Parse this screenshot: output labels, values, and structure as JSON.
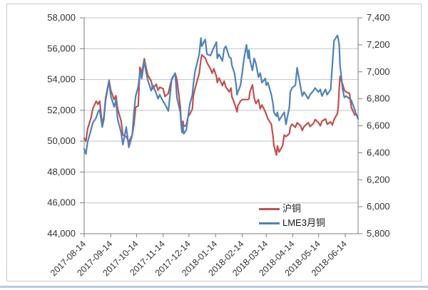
{
  "chart_data": {
    "type": "line",
    "title": "",
    "grid": "horizontal",
    "legend_position": "inside-bottom-right",
    "left_axis": {
      "min": 44000,
      "max": 58000,
      "step": 2000,
      "tick_labels": [
        "44,000",
        "46,000",
        "48,000",
        "50,000",
        "52,000",
        "54,000",
        "56,000",
        "58,000"
      ]
    },
    "right_axis": {
      "min": 5800,
      "max": 7400,
      "step": 200,
      "tick_labels": [
        "5,800",
        "6,000",
        "6,200",
        "6,400",
        "6,600",
        "6,800",
        "7,000",
        "7,200",
        "7,400"
      ]
    },
    "x_ticks": [
      "2017-08-14",
      "2017-09-14",
      "2017-10-14",
      "2017-11-14",
      "2017-12-14",
      "2018-01-14",
      "2018-02-14",
      "2018-03-14",
      "2018-04-14",
      "2018-05-14",
      "2018-06-14"
    ],
    "x": [
      "2017-08-14",
      "2017-08-16",
      "2017-08-18",
      "2017-08-22",
      "2017-08-24",
      "2017-08-28",
      "2017-08-30",
      "2017-09-01",
      "2017-09-04",
      "2017-09-06",
      "2017-09-08",
      "2017-09-12",
      "2017-09-14",
      "2017-09-18",
      "2017-09-20",
      "2017-09-22",
      "2017-09-26",
      "2017-09-28",
      "2017-10-02",
      "2017-10-05",
      "2017-10-09",
      "2017-10-11",
      "2017-10-13",
      "2017-10-16",
      "2017-10-18",
      "2017-10-20",
      "2017-10-23",
      "2017-10-25",
      "2017-10-27",
      "2017-10-31",
      "2017-11-02",
      "2017-11-06",
      "2017-11-08",
      "2017-11-10",
      "2017-11-14",
      "2017-11-16",
      "2017-11-20",
      "2017-11-22",
      "2017-11-24",
      "2017-11-28",
      "2017-11-30",
      "2017-12-04",
      "2017-12-05",
      "2017-12-06",
      "2017-12-07",
      "2017-12-08",
      "2017-12-11",
      "2017-12-13",
      "2017-12-15",
      "2017-12-18",
      "2017-12-19",
      "2017-12-21",
      "2017-12-26",
      "2017-12-28",
      "2017-12-29",
      "2018-01-02",
      "2018-01-04",
      "2018-01-08",
      "2018-01-10",
      "2018-01-12",
      "2018-01-15",
      "2018-01-16",
      "2018-01-18",
      "2018-01-22",
      "2018-01-24",
      "2018-01-26",
      "2018-01-30",
      "2018-02-01",
      "2018-02-02",
      "2018-02-05",
      "2018-02-07",
      "2018-02-08",
      "2018-02-09",
      "2018-02-12",
      "2018-02-14",
      "2018-02-16",
      "2018-02-19",
      "2018-02-21",
      "2018-02-22",
      "2018-02-23",
      "2018-02-26",
      "2018-02-28",
      "2018-03-02",
      "2018-03-05",
      "2018-03-07",
      "2018-03-09",
      "2018-03-13",
      "2018-03-14",
      "2018-03-16",
      "2018-03-20",
      "2018-03-22",
      "2018-03-23",
      "2018-03-26",
      "2018-03-27",
      "2018-03-29",
      "2018-04-02",
      "2018-04-04",
      "2018-04-06",
      "2018-04-10",
      "2018-04-11",
      "2018-04-13",
      "2018-04-17",
      "2018-04-19",
      "2018-04-23",
      "2018-04-25",
      "2018-04-27",
      "2018-05-02",
      "2018-05-04",
      "2018-05-08",
      "2018-05-10",
      "2018-05-14",
      "2018-05-16",
      "2018-05-18",
      "2018-05-22",
      "2018-05-24",
      "2018-05-28",
      "2018-05-30",
      "2018-06-01",
      "2018-06-05",
      "2018-06-06",
      "2018-06-07",
      "2018-06-08",
      "2018-06-11",
      "2018-06-13",
      "2018-06-15",
      "2018-06-19",
      "2018-06-21",
      "2018-06-25",
      "2018-06-27",
      "2018-06-29"
    ],
    "series": [
      {
        "name": "沪铜",
        "axis": "left",
        "color": "#C0504D",
        "values": [
          50200,
          50000,
          50800,
          51500,
          52100,
          52600,
          52400,
          52600,
          51050,
          51600,
          52800,
          53950,
          53300,
          52700,
          52950,
          52100,
          51300,
          50400,
          50300,
          49950,
          50400,
          51100,
          52200,
          52300,
          54800,
          54400,
          55350,
          54800,
          54300,
          53900,
          53400,
          53700,
          53300,
          53500,
          53400,
          52900,
          53100,
          53600,
          54000,
          54400,
          54000,
          52200,
          51200,
          50900,
          51300,
          50950,
          51050,
          51600,
          51750,
          52100,
          52900,
          53400,
          54400,
          55300,
          55600,
          55400,
          55100,
          54700,
          54400,
          54700,
          54200,
          53800,
          54100,
          53600,
          53900,
          53500,
          53200,
          53450,
          52900,
          52450,
          52100,
          51900,
          52300,
          52600,
          52700,
          52700,
          52700,
          52700,
          52750,
          53200,
          53650,
          52800,
          52450,
          52700,
          52100,
          52350,
          51900,
          51750,
          51450,
          51100,
          50300,
          49700,
          49100,
          49700,
          49300,
          49700,
          50400,
          50300,
          50500,
          50900,
          51100,
          50900,
          51200,
          51000,
          50700,
          50950,
          51200,
          50950,
          51150,
          51400,
          51200,
          51000,
          51300,
          51450,
          51100,
          51250,
          51050,
          51400,
          51800,
          52300,
          53400,
          54200,
          53700,
          53300,
          53200,
          53100,
          52200,
          51700,
          51750,
          51450
        ]
      },
      {
        "name": "LME3月铜",
        "axis": "right",
        "color": "#4F81BD",
        "values": [
          6430,
          6390,
          6480,
          6570,
          6620,
          6660,
          6700,
          6720,
          6590,
          6650,
          6790,
          6930,
          6820,
          6740,
          6790,
          6650,
          6550,
          6460,
          6590,
          6440,
          6530,
          6700,
          6820,
          6890,
          7000,
          6950,
          7080,
          7000,
          6940,
          6860,
          6900,
          6840,
          6800,
          6830,
          6780,
          6760,
          6710,
          6830,
          6950,
          6990,
          6810,
          6700,
          6600,
          6550,
          6600,
          6540,
          6570,
          6670,
          6760,
          6830,
          6900,
          7000,
          7130,
          7250,
          7190,
          7240,
          7130,
          7120,
          7150,
          7180,
          7220,
          7100,
          7130,
          7080,
          7170,
          7190,
          7110,
          7100,
          7050,
          6990,
          6900,
          6830,
          6850,
          6900,
          6990,
          7090,
          7200,
          7100,
          7160,
          7090,
          7010,
          7100,
          7060,
          6960,
          6990,
          6920,
          6950,
          6900,
          6920,
          6830,
          6760,
          6700,
          6670,
          6700,
          6640,
          6680,
          6700,
          6610,
          6740,
          6850,
          6880,
          6900,
          7030,
          6890,
          6820,
          6850,
          6800,
          6830,
          6860,
          6880,
          6850,
          6870,
          6820,
          6870,
          6830,
          6870,
          7050,
          7230,
          7270,
          7240,
          7200,
          7050,
          6870,
          6810,
          6820,
          6800,
          6790,
          6720,
          6680,
          6650
        ]
      }
    ]
  },
  "colors": {
    "series_red": "#C0504D",
    "series_blue": "#4F81BD",
    "gridline": "#c3c3c3",
    "axis": "#7f7f7f",
    "tick_label": "#333333",
    "frame_border": "#c9c9c9",
    "page_edge": "#b7cbe2"
  }
}
